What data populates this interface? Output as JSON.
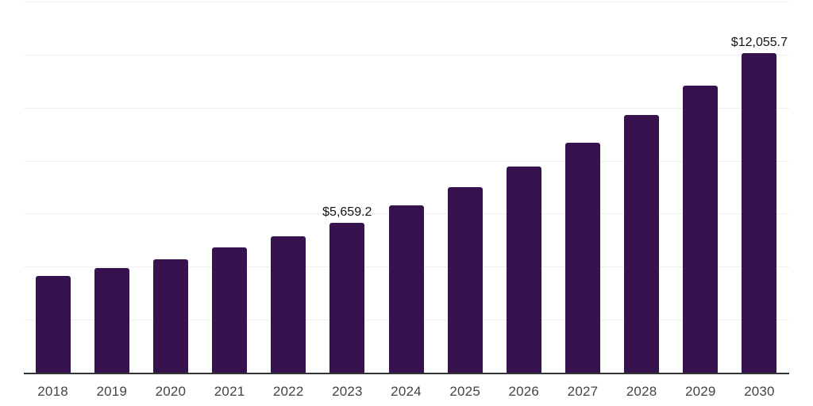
{
  "chart_data": {
    "type": "bar",
    "title": "",
    "xlabel": "",
    "ylabel": "",
    "categories": [
      "2018",
      "2019",
      "2020",
      "2021",
      "2022",
      "2023",
      "2024",
      "2025",
      "2026",
      "2027",
      "2028",
      "2029",
      "2030"
    ],
    "values": [
      3640,
      3940,
      4270,
      4715,
      5135,
      5659.2,
      6300,
      7015,
      7790,
      8685,
      9715,
      10820,
      12055.7
    ],
    "labeled_points": [
      {
        "category": "2023",
        "text": "$5,659.2"
      },
      {
        "category": "2030",
        "text": "$12,055.7"
      }
    ],
    "ylim": [
      0,
      14000
    ],
    "grid_step": 2000,
    "grid": true,
    "legend": false,
    "bar_corner_radius_px": 3,
    "colors": {
      "bar": "#36124F",
      "grid_line": "#efefef",
      "axis_line": "#333333",
      "tick_label": "#444444",
      "data_label": "#141414",
      "background": "#ffffff"
    }
  }
}
